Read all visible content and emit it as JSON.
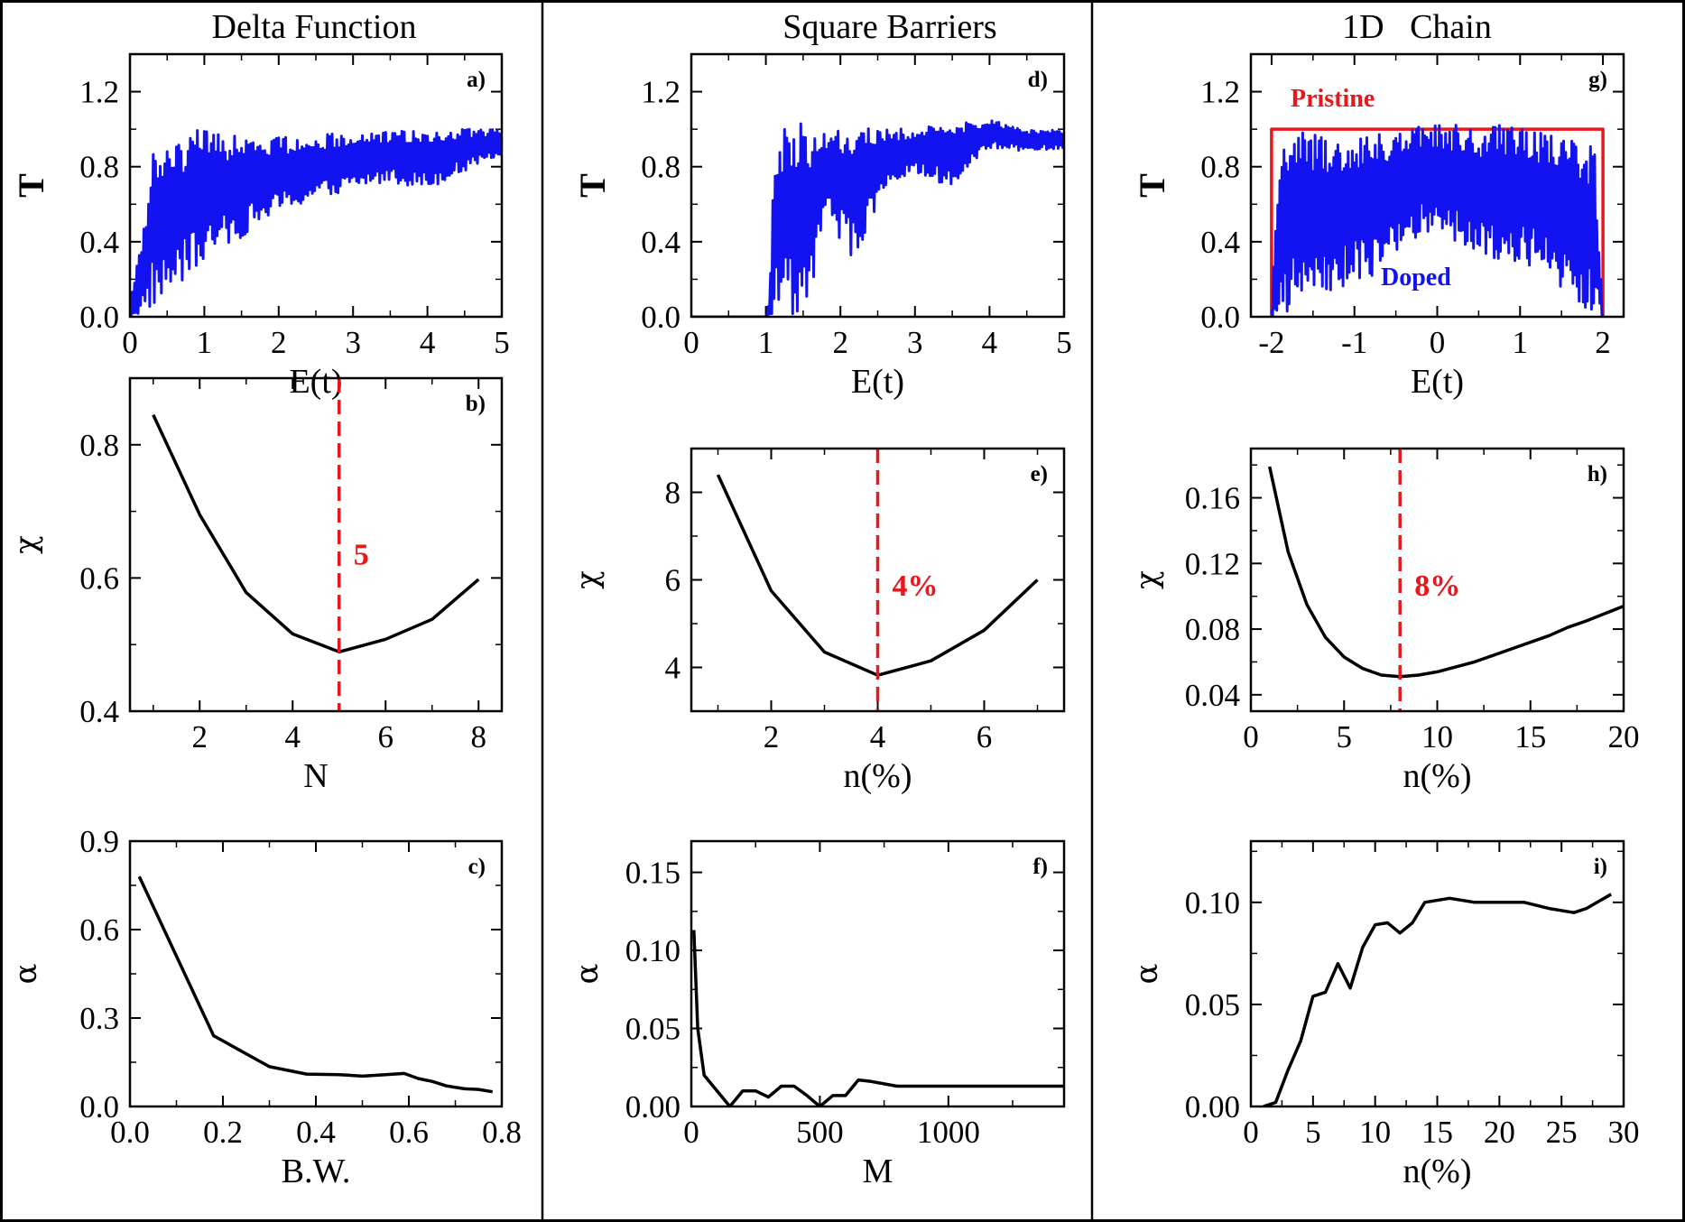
{
  "colors": {
    "blue": "#1313f2",
    "red": "#e8171c",
    "black": "#000000"
  },
  "column_titles": [
    "Delta Function",
    "Square Barriers",
    "1D   Chain"
  ],
  "chart_data": [
    {
      "id": "a",
      "type": "line",
      "tag": "a)",
      "title": "Delta Function",
      "xlabel": "E(t)",
      "ylabel": "T",
      "xlim": [
        0,
        5
      ],
      "ylim": [
        0,
        1.4
      ],
      "xticks": [
        0,
        1,
        2,
        3,
        4,
        5
      ],
      "yticks": [
        0.0,
        0.4,
        0.8,
        1.2
      ],
      "ytick_labels": [
        "0.0",
        "0.4",
        "0.8",
        "1.2"
      ],
      "series": [
        {
          "name": "T",
          "color": "#1313f2",
          "style": "fill-noisy",
          "envelope_x": [
            0.0,
            0.1,
            0.2,
            0.3,
            0.5,
            0.7,
            0.9,
            1.2,
            1.6,
            2.0,
            2.5,
            3.0,
            3.5,
            4.0,
            4.5,
            5.0
          ],
          "envelope_lo": [
            0.0,
            0.0,
            0.02,
            0.05,
            0.1,
            0.18,
            0.25,
            0.35,
            0.45,
            0.55,
            0.62,
            0.68,
            0.72,
            0.68,
            0.78,
            0.85
          ],
          "envelope_hi": [
            0.1,
            0.3,
            0.5,
            0.94,
            0.9,
            0.95,
            1.0,
            0.98,
            0.97,
            0.96,
            0.97,
            0.98,
            0.99,
            1.0,
            1.0,
            1.0
          ]
        }
      ]
    },
    {
      "id": "b",
      "type": "line",
      "tag": "b)",
      "xlabel": "N",
      "ylabel": "χ",
      "xlim": [
        0.5,
        8.5
      ],
      "ylim": [
        0.4,
        0.9
      ],
      "xticks": [
        2,
        4,
        6,
        8
      ],
      "yticks": [
        0.4,
        0.6,
        0.8
      ],
      "ytick_labels": [
        "0.4",
        "0.6",
        "0.8"
      ],
      "series": [
        {
          "name": "χ",
          "color": "#000000",
          "x": [
            1,
            2,
            3,
            4,
            5,
            6,
            7,
            8
          ],
          "y": [
            0.845,
            0.695,
            0.578,
            0.516,
            0.489,
            0.508,
            0.538,
            0.598
          ]
        }
      ],
      "marker_line": {
        "x": 5,
        "label": "5",
        "color": "#e8171c"
      }
    },
    {
      "id": "c",
      "type": "line",
      "tag": "c)",
      "xlabel": "B.W.",
      "ylabel": "α",
      "xlim": [
        0,
        0.8
      ],
      "ylim": [
        0,
        0.9
      ],
      "xticks": [
        0.0,
        0.2,
        0.4,
        0.6,
        0.8
      ],
      "xtick_labels": [
        "0.0",
        "0.2",
        "0.4",
        "0.6",
        "0.8"
      ],
      "yticks": [
        0.0,
        0.3,
        0.6,
        0.9
      ],
      "ytick_labels": [
        "0.0",
        "0.3",
        "0.6",
        "0.9"
      ],
      "series": [
        {
          "name": "α",
          "color": "#000000",
          "x": [
            0.02,
            0.18,
            0.3,
            0.38,
            0.45,
            0.5,
            0.55,
            0.59,
            0.62,
            0.65,
            0.68,
            0.72,
            0.75,
            0.78
          ],
          "y": [
            0.78,
            0.24,
            0.135,
            0.11,
            0.108,
            0.103,
            0.108,
            0.112,
            0.095,
            0.085,
            0.07,
            0.06,
            0.058,
            0.05
          ]
        }
      ]
    },
    {
      "id": "d",
      "type": "line",
      "tag": "d)",
      "title": "Square Barriers",
      "xlabel": "E(t)",
      "ylabel": "T",
      "xlim": [
        0,
        5
      ],
      "ylim": [
        0,
        1.4
      ],
      "xticks": [
        0,
        1,
        2,
        3,
        4,
        5
      ],
      "yticks": [
        0.0,
        0.4,
        0.8,
        1.2
      ],
      "ytick_labels": [
        "0.0",
        "0.4",
        "0.8",
        "1.2"
      ],
      "series": [
        {
          "name": "T",
          "color": "#1313f2",
          "style": "fill-noisy",
          "envelope_x": [
            0.0,
            1.0,
            1.05,
            1.1,
            1.2,
            1.4,
            1.6,
            1.8,
            2.0,
            2.2,
            2.4,
            2.6,
            3.0,
            3.5,
            4.0,
            4.5,
            5.0
          ],
          "envelope_lo": [
            0.0,
            0.0,
            0.0,
            0.0,
            0.05,
            0.0,
            0.1,
            0.55,
            0.4,
            0.3,
            0.5,
            0.7,
            0.75,
            0.7,
            0.9,
            0.88,
            0.9
          ],
          "envelope_hi": [
            0.0,
            0.0,
            0.1,
            0.85,
            1.0,
            1.05,
            1.0,
            1.0,
            1.02,
            1.0,
            1.01,
            1.0,
            1.01,
            1.03,
            1.05,
            1.0,
            1.0
          ]
        }
      ]
    },
    {
      "id": "e",
      "type": "line",
      "tag": "e)",
      "xlabel": "n(%)",
      "ylabel": "χ",
      "xlim": [
        0.5,
        7.5
      ],
      "ylim": [
        3,
        9
      ],
      "xticks": [
        2,
        4,
        6
      ],
      "yticks": [
        4,
        6,
        8
      ],
      "ytick_labels": [
        "4",
        "6",
        "8"
      ],
      "series": [
        {
          "name": "χ",
          "color": "#000000",
          "x": [
            1,
            2,
            3,
            4,
            5,
            6,
            7
          ],
          "y": [
            8.4,
            5.75,
            4.35,
            3.82,
            4.15,
            4.85,
            6.0
          ]
        }
      ],
      "marker_line": {
        "x": 4,
        "label": "4%",
        "color": "#e8171c"
      }
    },
    {
      "id": "f",
      "type": "line",
      "tag": "f)",
      "xlabel": "M",
      "ylabel": "α",
      "xlim": [
        0,
        1450
      ],
      "ylim": [
        0,
        0.17
      ],
      "xticks": [
        0,
        500,
        1000
      ],
      "yticks": [
        0.0,
        0.05,
        0.1,
        0.15
      ],
      "ytick_labels": [
        "0.00",
        "0.05",
        "0.10",
        "0.15"
      ],
      "series": [
        {
          "name": "α",
          "color": "#000000",
          "x": [
            10,
            25,
            50,
            100,
            150,
            200,
            250,
            300,
            350,
            400,
            450,
            500,
            550,
            600,
            650,
            700,
            800,
            900,
            1000,
            1200,
            1450
          ],
          "y": [
            0.113,
            0.05,
            0.02,
            0.01,
            0.0,
            0.01,
            0.01,
            0.006,
            0.013,
            0.013,
            0.007,
            0.0,
            0.007,
            0.007,
            0.017,
            0.016,
            0.013,
            0.013,
            0.013,
            0.013,
            0.013
          ]
        }
      ]
    },
    {
      "id": "g",
      "type": "line",
      "tag": "g)",
      "title": "1D   Chain",
      "xlabel": "E(t)",
      "ylabel": "T",
      "xlim": [
        -2.25,
        2.25
      ],
      "ylim": [
        0,
        1.4
      ],
      "xticks": [
        -2,
        -1,
        0,
        1,
        2
      ],
      "xtick_labels": [
        "-2",
        "-1",
        "0",
        "1",
        "2"
      ],
      "yticks": [
        0.0,
        0.4,
        0.8,
        1.2
      ],
      "ytick_labels": [
        "0.0",
        "0.4",
        "0.8",
        "1.2"
      ],
      "series": [
        {
          "name": "Pristine",
          "color": "#e8171c",
          "x": [
            -2.0,
            -2.0,
            2.0,
            2.0
          ],
          "y": [
            0.0,
            1.0,
            1.0,
            0.0
          ]
        },
        {
          "name": "Doped",
          "color": "#1313f2",
          "style": "fill-noisy",
          "envelope_x": [
            -2.0,
            -1.9,
            -1.6,
            -1.2,
            -0.8,
            -0.4,
            0.0,
            0.4,
            0.8,
            1.2,
            1.6,
            1.9,
            2.0
          ],
          "envelope_lo": [
            0.0,
            0.0,
            0.1,
            0.15,
            0.2,
            0.4,
            0.45,
            0.35,
            0.3,
            0.25,
            0.1,
            0.0,
            0.0
          ],
          "envelope_hi": [
            0.05,
            0.95,
            1.0,
            0.95,
            0.98,
            1.0,
            1.05,
            1.0,
            1.03,
            1.0,
            0.95,
            0.9,
            0.0
          ]
        }
      ],
      "legend": [
        "Pristine",
        "Doped"
      ]
    },
    {
      "id": "h",
      "type": "line",
      "tag": "h)",
      "xlabel": "n(%)",
      "ylabel": "χ",
      "xlim": [
        0,
        20
      ],
      "ylim": [
        0.03,
        0.19
      ],
      "xticks": [
        0,
        5,
        10,
        15,
        20
      ],
      "yticks": [
        0.04,
        0.08,
        0.12,
        0.16
      ],
      "ytick_labels": [
        "0.04",
        "0.08",
        "0.12",
        "0.16"
      ],
      "series": [
        {
          "name": "χ",
          "color": "#000000",
          "x": [
            1,
            2,
            3,
            4,
            5,
            6,
            7,
            8,
            9,
            10,
            12,
            14,
            16,
            17,
            18,
            20
          ],
          "y": [
            0.179,
            0.127,
            0.095,
            0.075,
            0.063,
            0.056,
            0.052,
            0.051,
            0.052,
            0.054,
            0.06,
            0.068,
            0.076,
            0.081,
            0.085,
            0.094
          ]
        }
      ],
      "marker_line": {
        "x": 8,
        "label": "8%",
        "color": "#e8171c"
      }
    },
    {
      "id": "i",
      "type": "line",
      "tag": "i)",
      "xlabel": "n(%)",
      "ylabel": "α",
      "xlim": [
        0,
        30
      ],
      "ylim": [
        0,
        0.13
      ],
      "xticks": [
        0,
        5,
        10,
        15,
        20,
        25,
        30
      ],
      "yticks": [
        0.0,
        0.05,
        0.1
      ],
      "ytick_labels": [
        "0.00",
        "0.05",
        "0.10"
      ],
      "series": [
        {
          "name": "α",
          "color": "#000000",
          "x": [
            1,
            2,
            3,
            4,
            5,
            6,
            7,
            8,
            9,
            10,
            11,
            12,
            13,
            14,
            16,
            18,
            20,
            22,
            24,
            26,
            27,
            29
          ],
          "y": [
            0.0,
            0.002,
            0.018,
            0.032,
            0.054,
            0.056,
            0.07,
            0.058,
            0.078,
            0.089,
            0.09,
            0.085,
            0.09,
            0.1,
            0.102,
            0.1,
            0.1,
            0.1,
            0.097,
            0.095,
            0.097,
            0.104
          ]
        }
      ]
    }
  ]
}
